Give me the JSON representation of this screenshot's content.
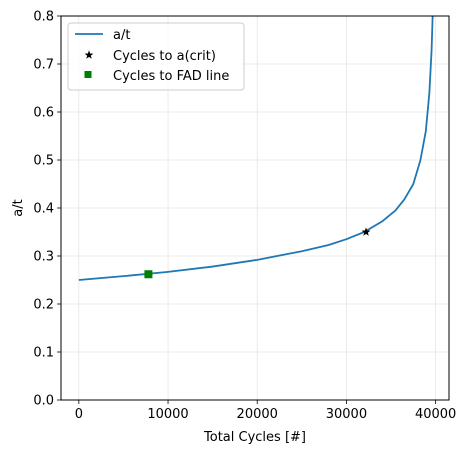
{
  "chart_data": {
    "type": "line",
    "xlabel": "Total Cycles [#]",
    "ylabel": "a/t",
    "xlim": [
      -2000,
      41500
    ],
    "ylim": [
      0.0,
      0.8
    ],
    "xticks": [
      0,
      10000,
      20000,
      30000,
      40000
    ],
    "yticks": [
      0.0,
      0.1,
      0.2,
      0.3,
      0.4,
      0.5,
      0.6,
      0.7,
      0.8
    ],
    "xtick_labels": [
      "0",
      "10000",
      "20000",
      "30000",
      "40000"
    ],
    "ytick_labels": [
      "0.0",
      "0.1",
      "0.2",
      "0.3",
      "0.4",
      "0.5",
      "0.6",
      "0.7",
      "0.8"
    ],
    "grid": true,
    "legend_position": "top-left",
    "series": [
      {
        "name": "a/t",
        "kind": "line",
        "color": "#1f77b4",
        "x": [
          0,
          5000,
          10000,
          15000,
          20000,
          25000,
          28000,
          30000,
          32000,
          34000,
          35500,
          36500,
          37500,
          38300,
          38900,
          39300,
          39550,
          39700
        ],
        "y": [
          0.25,
          0.258,
          0.267,
          0.278,
          0.292,
          0.31,
          0.323,
          0.335,
          0.35,
          0.372,
          0.395,
          0.418,
          0.45,
          0.5,
          0.56,
          0.64,
          0.73,
          0.82
        ]
      },
      {
        "name": "Cycles to a(crit)",
        "kind": "marker",
        "marker": "star",
        "color": "#000000",
        "x": [
          32200
        ],
        "y": [
          0.35
        ]
      },
      {
        "name": "Cycles to FAD line",
        "kind": "marker",
        "marker": "square",
        "color": "#008000",
        "x": [
          7800
        ],
        "y": [
          0.262
        ]
      }
    ]
  }
}
